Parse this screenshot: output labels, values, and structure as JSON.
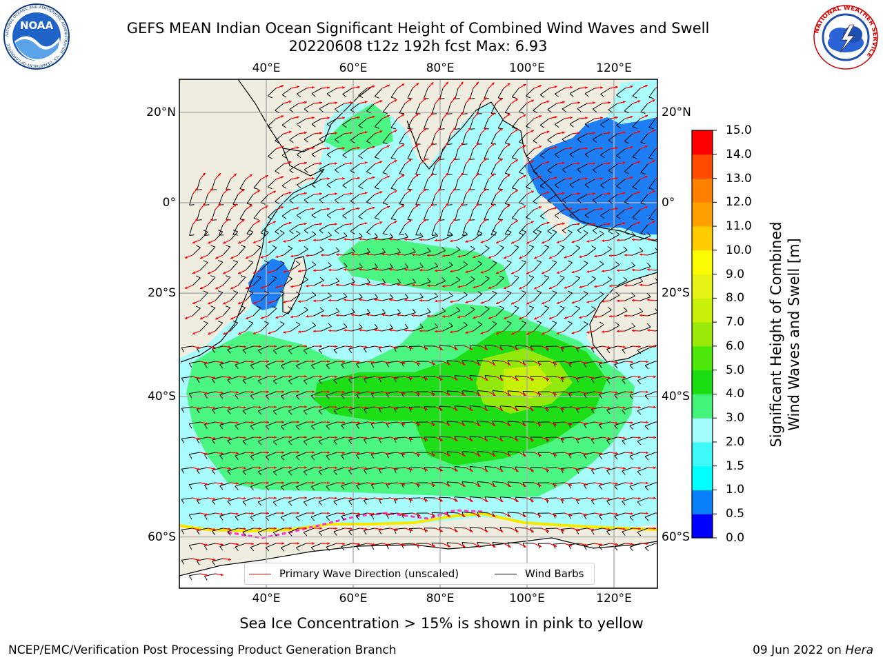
{
  "title": {
    "line1": "GEFS MEAN Indian Ocean Significant Height of Combined Wind Waves and Swell",
    "line2": "20220608 t12z 192h fcst   Max: 6.93"
  },
  "logos": {
    "noaa_text": "NOAA",
    "noaa_ring": "NATIONAL OCEANIC AND ATMOSPHERIC ADMINISTRATION · U.S. DEPARTMENT OF COMMERCE",
    "nws_ring": "NATIONAL WEATHER SERVICE"
  },
  "axes": {
    "lon_ticks": [
      "40°E",
      "60°E",
      "80°E",
      "100°E",
      "120°E"
    ],
    "lat_ticks_left": [
      "20°N",
      "0°",
      "20°S",
      "40°S",
      "60°S"
    ],
    "lat_ticks_right": [
      "20°N",
      "0°",
      "20°S",
      "40°S",
      "60°S"
    ],
    "lon_values": [
      40,
      60,
      80,
      100,
      120
    ],
    "lat_values": [
      20,
      0,
      -20,
      -40,
      -60
    ]
  },
  "colorbar": {
    "label_line1": "Significant Height of Combined",
    "label_line2": "Wind Waves and Swell [m]",
    "ticks": [
      "0.0",
      "0.5",
      "1.0",
      "1.5",
      "2.0",
      "3.0",
      "4.0",
      "5.0",
      "6.0",
      "7.0",
      "8.0",
      "9.0",
      "10.0",
      "11.0",
      "12.0",
      "13.0",
      "14.0",
      "15.0"
    ],
    "colors": [
      "#0000ff",
      "#0a7ffa",
      "#00ffff",
      "#3ff9f9",
      "#a4fcfc",
      "#44f47a",
      "#1bdc12",
      "#4ce60a",
      "#9ae90b",
      "#c8f008",
      "#e6f215",
      "#fafa00",
      "#ffcc00",
      "#ffa000",
      "#ff8000",
      "#ff4a00",
      "#ff0000"
    ]
  },
  "legend": {
    "wave_label": "Primary Wave Direction (unscaled)",
    "wave_color": "#ff0000",
    "wind_label": "Wind Barbs",
    "wind_color": "#000000"
  },
  "note": "Sea Ice Concentration > 15% is shown in pink to yellow",
  "footer": {
    "left": "NCEP/EMC/Verification Post Processing Product Generation Branch",
    "right_date": "09 Jun 2022 on ",
    "right_host": "Hera"
  }
}
